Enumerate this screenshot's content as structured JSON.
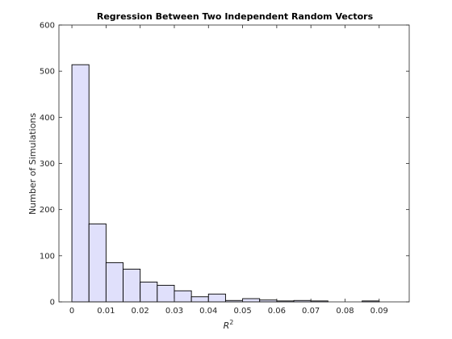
{
  "chart_data": {
    "type": "bar",
    "title": "Regression Between Two Independent Random Vectors",
    "xlabel": "R",
    "xlabel_sup": "2",
    "ylabel": "Number of Simulations",
    "xlim": [
      -0.0038,
      0.0988
    ],
    "ylim": [
      0,
      600
    ],
    "xticks": [
      0,
      0.01,
      0.02,
      0.03,
      0.04,
      0.05,
      0.06,
      0.07,
      0.08,
      0.09
    ],
    "xtick_labels": [
      "0",
      "0.01",
      "0.02",
      "0.03",
      "0.04",
      "0.05",
      "0.06",
      "0.07",
      "0.08",
      "0.09"
    ],
    "yticks": [
      0,
      100,
      200,
      300,
      400,
      500,
      600
    ],
    "ytick_labels": [
      "0",
      "100",
      "200",
      "300",
      "400",
      "500",
      "600"
    ],
    "bin_width": 0.005,
    "bin_edges_start": 0,
    "values": [
      514,
      169,
      85,
      71,
      43,
      36,
      24,
      11,
      17,
      3,
      7,
      4,
      2,
      3,
      2,
      0,
      0,
      2
    ],
    "grid": false,
    "legend": "none",
    "colors": {
      "bar_fill": "#e0e0fb",
      "bar_edge": "#000000",
      "axis": "#262626",
      "background": "#ffffff"
    }
  }
}
